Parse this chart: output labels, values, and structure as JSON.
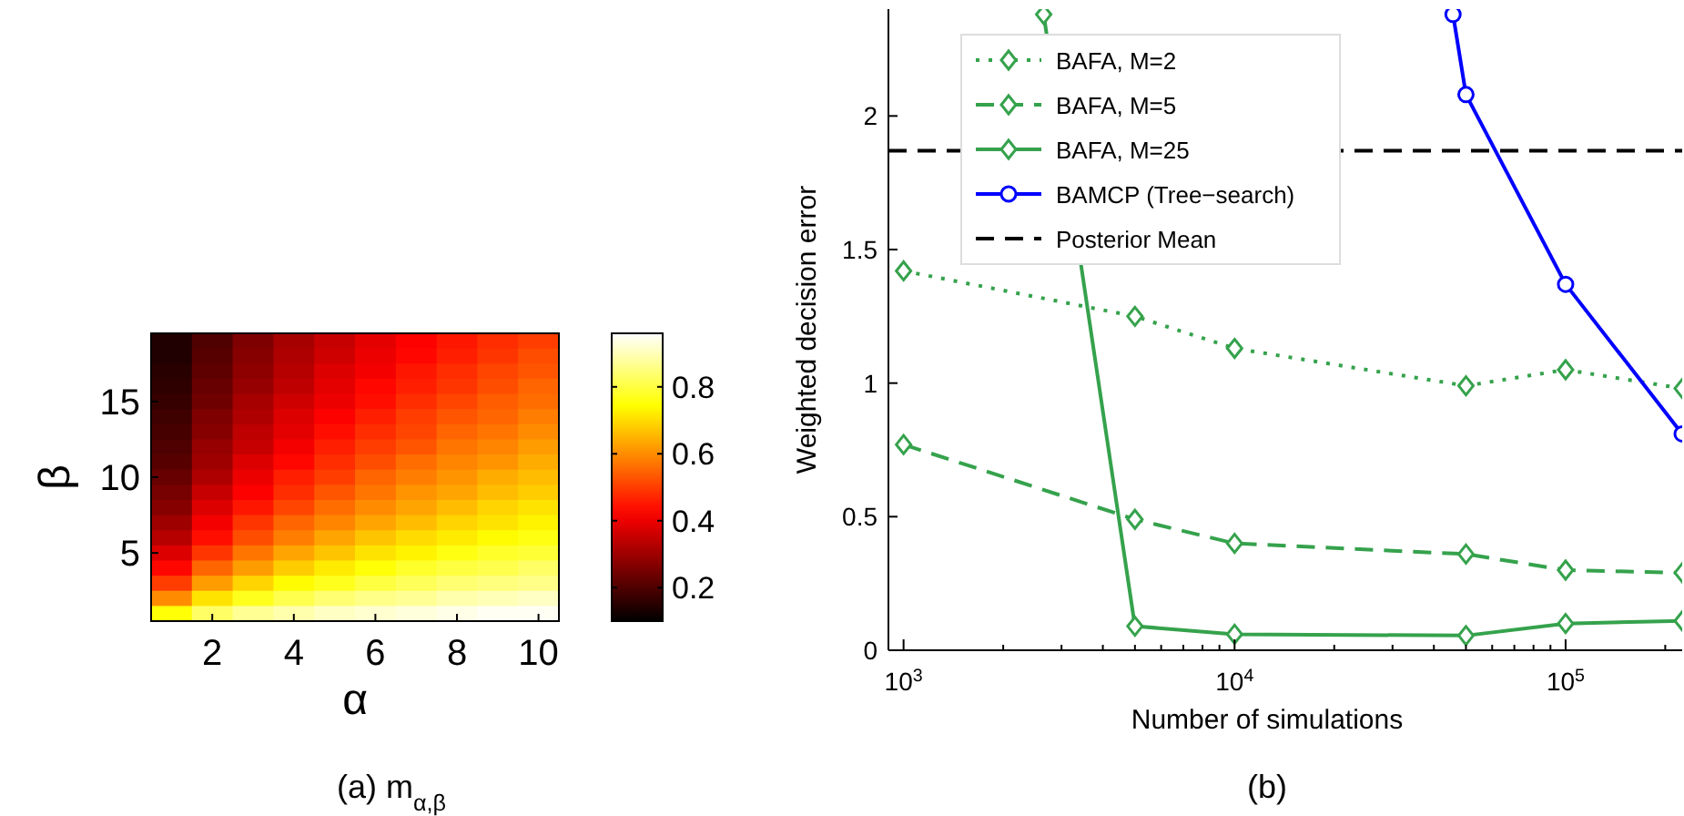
{
  "chart_data": [
    {
      "type": "heatmap",
      "title": "(a) m$_{α,β}$",
      "xlabel": "α",
      "ylabel": "β",
      "categories": [
        null,
        "2",
        null,
        "4",
        null,
        "6",
        null,
        "8",
        null,
        "10"
      ],
      "y_categories": [
        null,
        null,
        null,
        null,
        "15",
        null,
        null,
        null,
        null,
        "10",
        null,
        null,
        null,
        null,
        "5",
        null,
        null,
        null,
        null
      ],
      "cells": [
        [
          0.14,
          0.2,
          0.26,
          0.31,
          0.35,
          0.39,
          0.42,
          0.45,
          0.48,
          0.5
        ],
        [
          0.14,
          0.21,
          0.27,
          0.32,
          0.36,
          0.4,
          0.43,
          0.46,
          0.49,
          0.52
        ],
        [
          0.15,
          0.22,
          0.28,
          0.33,
          0.38,
          0.41,
          0.45,
          0.48,
          0.51,
          0.53
        ],
        [
          0.16,
          0.23,
          0.29,
          0.34,
          0.39,
          0.43,
          0.46,
          0.49,
          0.52,
          0.55
        ],
        [
          0.17,
          0.24,
          0.31,
          0.36,
          0.4,
          0.44,
          0.48,
          0.51,
          0.54,
          0.56
        ],
        [
          0.18,
          0.26,
          0.32,
          0.38,
          0.42,
          0.46,
          0.5,
          0.53,
          0.55,
          0.58
        ],
        [
          0.19,
          0.27,
          0.34,
          0.39,
          0.44,
          0.48,
          0.51,
          0.55,
          0.57,
          0.6
        ],
        [
          0.2,
          0.29,
          0.35,
          0.41,
          0.46,
          0.5,
          0.53,
          0.57,
          0.59,
          0.62
        ],
        [
          0.21,
          0.3,
          0.38,
          0.43,
          0.48,
          0.52,
          0.56,
          0.59,
          0.61,
          0.64
        ],
        [
          0.23,
          0.32,
          0.4,
          0.46,
          0.5,
          0.55,
          0.58,
          0.61,
          0.64,
          0.66
        ],
        [
          0.25,
          0.35,
          0.42,
          0.48,
          0.53,
          0.57,
          0.61,
          0.63,
          0.66,
          0.68
        ],
        [
          0.27,
          0.38,
          0.45,
          0.51,
          0.56,
          0.6,
          0.63,
          0.66,
          0.69,
          0.71
        ],
        [
          0.3,
          0.41,
          0.49,
          0.55,
          0.59,
          0.63,
          0.66,
          0.69,
          0.71,
          0.73
        ],
        [
          0.33,
          0.44,
          0.52,
          0.58,
          0.63,
          0.67,
          0.7,
          0.72,
          0.74,
          0.76
        ],
        [
          0.38,
          0.49,
          0.57,
          0.63,
          0.67,
          0.71,
          0.73,
          0.76,
          0.78,
          0.79
        ],
        [
          0.43,
          0.55,
          0.62,
          0.68,
          0.72,
          0.75,
          0.78,
          0.8,
          0.81,
          0.83
        ],
        [
          0.5,
          0.62,
          0.69,
          0.74,
          0.77,
          0.8,
          0.82,
          0.84,
          0.85,
          0.86
        ],
        [
          0.6,
          0.71,
          0.77,
          0.81,
          0.84,
          0.86,
          0.87,
          0.89,
          0.9,
          0.91
        ],
        [
          0.75,
          0.83,
          0.87,
          0.89,
          0.91,
          0.92,
          0.93,
          0.94,
          0.95,
          0.95
        ]
      ],
      "clim": [
        0.1,
        0.96
      ],
      "cticks": [
        0.2,
        0.4,
        0.6,
        0.8
      ]
    },
    {
      "type": "line",
      "title": "(b)",
      "xlabel": "Number of simulations",
      "ylabel": "Weighted decision error",
      "log": "x",
      "legend": "top left",
      "xlim": [
        900,
        225000
      ],
      "ylim": [
        0,
        2.4
      ],
      "xticks": [
        {
          "value": 1000,
          "label": "10$^{3}$"
        },
        {
          "value": 2000,
          "label": null
        },
        {
          "value": 3000,
          "label": null
        },
        {
          "value": 4000,
          "label": null
        },
        {
          "value": 5000,
          "label": null
        },
        {
          "value": 6000,
          "label": null
        },
        {
          "value": 7000,
          "label": null
        },
        {
          "value": 8000,
          "label": null
        },
        {
          "value": 9000,
          "label": null
        },
        {
          "value": 10000,
          "label": "10$^{4}$"
        },
        {
          "value": 20000,
          "label": null
        },
        {
          "value": 30000,
          "label": null
        },
        {
          "value": 40000,
          "label": null
        },
        {
          "value": 50000,
          "label": null
        },
        {
          "value": 60000,
          "label": null
        },
        {
          "value": 70000,
          "label": null
        },
        {
          "value": 80000,
          "label": null
        },
        {
          "value": 90000,
          "label": null
        },
        {
          "value": 100000,
          "label": "10$^{5}$"
        },
        {
          "value": 200000,
          "label": null
        }
      ],
      "yticks": [
        0,
        0.5,
        1,
        1.5,
        2
      ],
      "series": [
        {
          "name": "BAFA, M=2",
          "color": "#35a24c",
          "line_style": "dotted",
          "marker": "diamond",
          "x": [
            1000,
            5000,
            10000,
            50000,
            100000,
            225000
          ],
          "values": [
            1.42,
            1.25,
            1.13,
            0.99,
            1.05,
            0.98
          ]
        },
        {
          "name": "BAFA, M=5",
          "color": "#35a24c",
          "line_style": "dashed",
          "marker": "diamond",
          "x": [
            1000,
            5000,
            10000,
            50000,
            100000,
            225000
          ],
          "values": [
            0.77,
            0.49,
            0.4,
            0.36,
            0.3,
            0.29
          ]
        },
        {
          "name": "BAFA, M=25",
          "color": "#35a24c",
          "line_style": "solid",
          "marker": "diamond",
          "x": [
            2650,
            5000,
            10000,
            50000,
            100000,
            225000
          ],
          "values": [
            2.38,
            0.09,
            0.06,
            0.055,
            0.1,
            0.11
          ]
        },
        {
          "name": "BAMCP (Tree−search)",
          "color": "#0000ff",
          "line_style": "solid",
          "marker": "circle",
          "x": [
            45700,
            50000,
            100000,
            225000
          ],
          "values": [
            2.38,
            2.08,
            1.37,
            0.81
          ]
        },
        {
          "name": "Posterior Mean",
          "color": "#000000",
          "line_style": "dashed",
          "marker": "none",
          "x": [
            900,
            225000
          ],
          "values": [
            1.87,
            1.87
          ]
        }
      ]
    }
  ]
}
